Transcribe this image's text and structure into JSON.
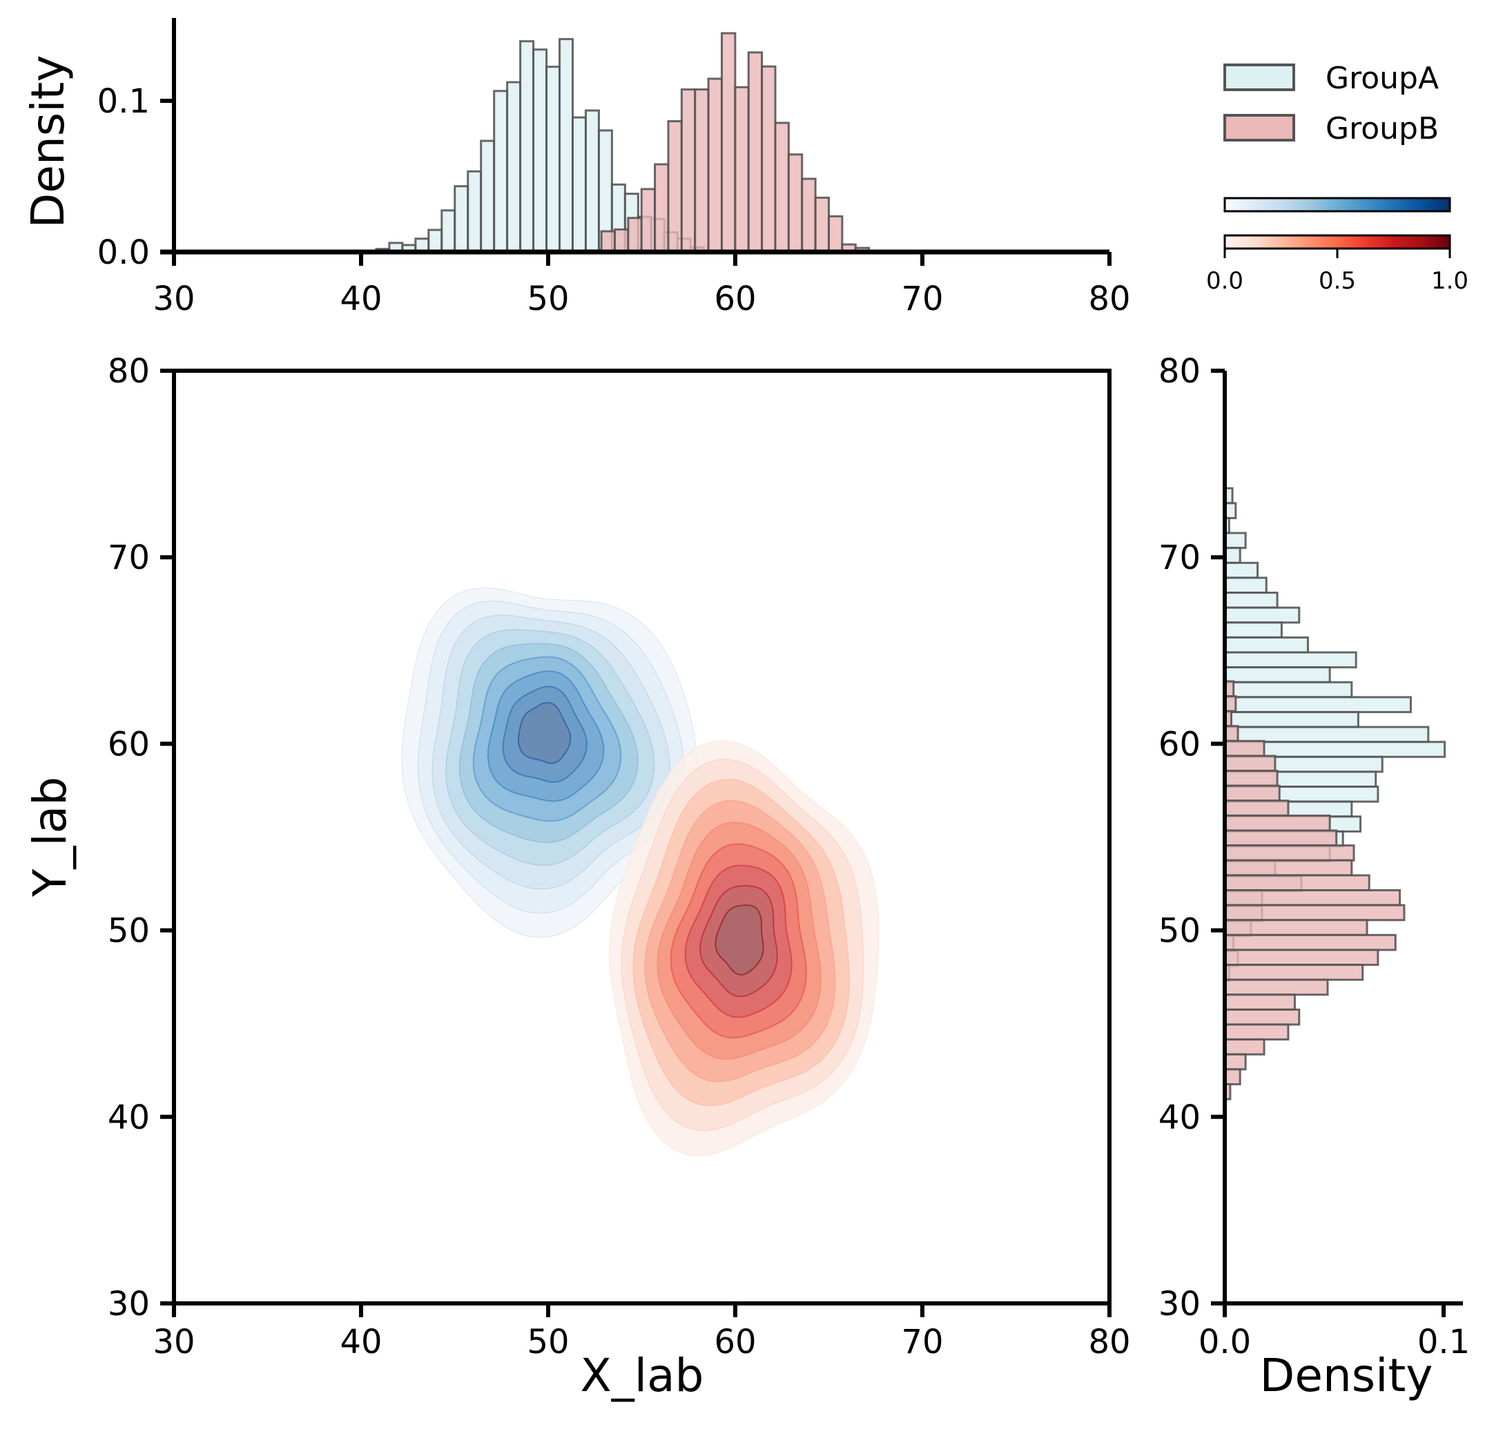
{
  "chart_data": {
    "type": "scatter",
    "kind": "joint KDE plot with marginal histograms",
    "main": {
      "xlabel": "X_lab",
      "ylabel": "Y_lab",
      "xlim": [
        30,
        80
      ],
      "ylim": [
        30,
        80
      ],
      "xticks": [
        "30",
        "40",
        "50",
        "60",
        "70",
        "80"
      ],
      "yticks": [
        "30",
        "40",
        "50",
        "60",
        "70",
        "80"
      ],
      "grid": false,
      "kde": [
        {
          "name": "GroupA",
          "cmap": "Blues",
          "center": [
            49.8,
            60.6
          ],
          "levels": 9,
          "outer_radius": [
            7.6,
            9.4
          ],
          "colors": [
            "#f1f6fb",
            "#e4eef8",
            "#d6e5f2",
            "#c1dcea",
            "#a6cde3",
            "#8dbdde",
            "#78abd4",
            "#6d9bc8",
            "#6a8ab3"
          ],
          "line_colors": [
            "#c6dbef",
            "#b9d3ea",
            "#a8cbe3",
            "#8ebfdd",
            "#6fa9d4",
            "#5597cb",
            "#3f83bf",
            "#2d6fb0",
            "#24589a"
          ]
        },
        {
          "name": "GroupB",
          "cmap": "Reds",
          "center": [
            60.3,
            49.6
          ],
          "levels": 9,
          "outer_radius": [
            7.4,
            10.4
          ],
          "colors": [
            "#fcefe9",
            "#fbe0d6",
            "#fbcab8",
            "#f9b19c",
            "#f69a85",
            "#ef7f73",
            "#dd6c6e",
            "#c8696c",
            "#ad686b"
          ],
          "line_colors": [
            "#fde0d2",
            "#fcc6b0",
            "#fbb09a",
            "#f8957e",
            "#f4745f",
            "#e65549",
            "#d2383a",
            "#b7272e",
            "#8f1a24"
          ]
        }
      ]
    },
    "top_histogram": {
      "ylabel": "Density",
      "xlim": [
        30,
        80
      ],
      "ylim": [
        0,
        0.155
      ],
      "xticks": [
        "30",
        "40",
        "50",
        "60",
        "70",
        "80"
      ],
      "yticks": [
        {
          "value": 0.0,
          "label": "0.0"
        },
        {
          "value": 0.1,
          "label": "0.1"
        }
      ],
      "series": [
        {
          "name": "GroupA",
          "bin_start": 40.81,
          "bin_width": 0.7,
          "values": [
            0.002,
            0.006,
            0.0046,
            0.0088,
            0.0146,
            0.0275,
            0.0435,
            0.0533,
            0.0735,
            0.1065,
            0.1123,
            0.1394,
            0.1339,
            0.1225,
            0.1408,
            0.089,
            0.0936,
            0.0804,
            0.0446,
            0.0385,
            0.0233,
            0.0218,
            0.013,
            0.0088,
            0.003,
            0.0008
          ]
        },
        {
          "name": "GroupB",
          "bin_start": 52.13,
          "bin_width": 0.715,
          "values": [
            0.001,
            0.0137,
            0.0149,
            0.0225,
            0.0416,
            0.058,
            0.0865,
            0.1075,
            0.1075,
            0.1146,
            0.1447,
            0.109,
            0.132,
            0.1227,
            0.0854,
            0.0645,
            0.0484,
            0.0359,
            0.0236,
            0.005,
            0.0027,
            0.0005,
            0.0005
          ]
        }
      ]
    },
    "right_histogram": {
      "xlabel": "Density",
      "xlim": [
        0,
        0.109
      ],
      "ylim": [
        30,
        80
      ],
      "xticks": [
        {
          "value": 0.0,
          "label": "0.0"
        },
        {
          "value": 0.1,
          "label": "0.1"
        }
      ],
      "yticks": [
        "30",
        "40",
        "50",
        "60",
        "70",
        "80"
      ],
      "series": [
        {
          "name": "GroupA",
          "bin_top": 73.7,
          "bin_height": 0.8,
          "values": [
            0.0035,
            0.005,
            0.002,
            0.0095,
            0.007,
            0.015,
            0.019,
            0.024,
            0.034,
            0.026,
            0.038,
            0.06,
            0.048,
            0.058,
            0.085,
            0.061,
            0.093,
            0.1005,
            0.072,
            0.069,
            0.07,
            0.058,
            0.062,
            0.054,
            0.048,
            0.023,
            0.035,
            0.017,
            0.017,
            0.012,
            0.004,
            0.006,
            0.002
          ]
        },
        {
          "name": "GroupB",
          "bin_top": 63.35,
          "bin_height": 0.8,
          "values": [
            0.004,
            0.005,
            0.003,
            0.006,
            0.018,
            0.023,
            0.024,
            0.025,
            0.029,
            0.048,
            0.051,
            0.059,
            0.058,
            0.066,
            0.08,
            0.082,
            0.065,
            0.078,
            0.07,
            0.063,
            0.047,
            0.032,
            0.034,
            0.029,
            0.018,
            0.0095,
            0.007,
            0.0025
          ]
        }
      ]
    },
    "legend": {
      "placement": "top-right",
      "entries": [
        {
          "label": "GroupA",
          "color": "#ddf0f4",
          "edge": "#555555"
        },
        {
          "label": "GroupB",
          "color": "#ebb8b8",
          "edge": "#555555"
        }
      ]
    },
    "colorbars": [
      {
        "name": "Blues",
        "stops": [
          "#f7fbff",
          "#deebf7",
          "#c6dbef",
          "#9ecae1",
          "#6baed6",
          "#4292c6",
          "#2171b5",
          "#08519c",
          "#08306b"
        ]
      },
      {
        "name": "Reds",
        "stops": [
          "#fff5f0",
          "#fee0d2",
          "#fcbba1",
          "#fc9272",
          "#fb6a4a",
          "#ef3b2c",
          "#cb181d",
          "#a50f15",
          "#67000d"
        ],
        "ticks": [
          "0.0",
          "0.5",
          "1.0"
        ]
      }
    ],
    "hist_colors": {
      "GroupA": "#ddf0f4",
      "GroupB": "#ebb8b8",
      "edge": "#555555"
    }
  }
}
